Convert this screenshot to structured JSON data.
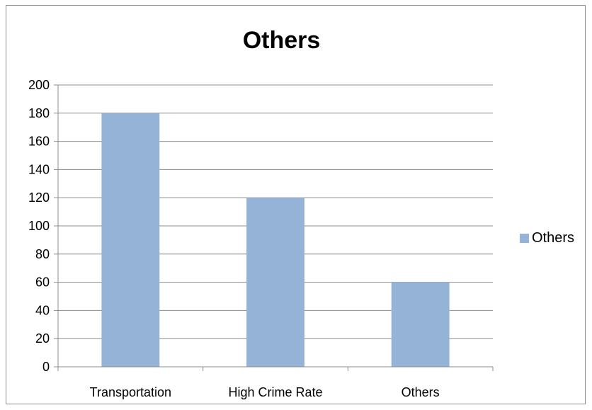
{
  "chart_data": {
    "type": "bar",
    "title": "Others",
    "categories": [
      "Transportation",
      "High Crime Rate",
      "Others"
    ],
    "series": [
      {
        "name": "Others",
        "values": [
          180,
          120,
          60
        ],
        "color": "#95b3d7"
      }
    ],
    "ylim": [
      0,
      200
    ],
    "yticks": [
      0,
      20,
      40,
      60,
      80,
      100,
      120,
      140,
      160,
      180,
      200
    ],
    "grid": true,
    "legend_position": "right"
  }
}
